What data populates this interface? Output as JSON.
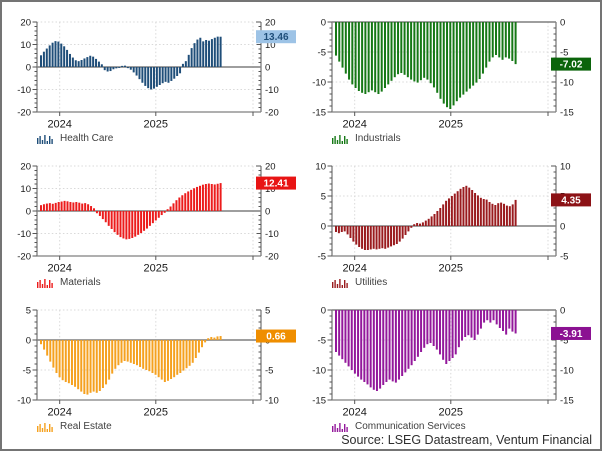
{
  "window": {
    "source_note": "Source: LSEG Datastream, Ventum Financial"
  },
  "chart_data": [
    {
      "type": "bar",
      "name": "Health Care",
      "value_label": "13.46",
      "color": "#1F4E79",
      "label_bg": "#9DC3E6",
      "label_fg": "#1F4E79",
      "ylim": [
        -20,
        20
      ],
      "yticks": [
        20,
        10,
        0,
        -10,
        -20
      ],
      "minor_step": 2,
      "x_year_labels": [
        "2024",
        "2025"
      ],
      "grid": true,
      "legend_position": "bottom-left",
      "values": [
        5.2,
        6.8,
        8.2,
        9.6,
        10.8,
        11.5,
        11.3,
        10.4,
        9.2,
        7.6,
        5.8,
        4.2,
        3.0,
        2.6,
        3.1,
        3.8,
        4.4,
        5.0,
        4.6,
        3.6,
        2.4,
        1.2,
        -1.4,
        -2.0,
        -1.8,
        -1.0,
        -0.6,
        -0.4,
        0.5,
        0.6,
        -0.5,
        -1.2,
        -2.4,
        -3.8,
        -5.4,
        -7.0,
        -8.4,
        -9.4,
        -10.0,
        -9.6,
        -8.8,
        -8.0,
        -7.2,
        -6.6,
        -7.0,
        -6.2,
        -5.2,
        -4.0,
        -2.8,
        1.4,
        2.6,
        5.4,
        8.4,
        10.6,
        12.2,
        13.0,
        11.4,
        12.0,
        11.7,
        12.4,
        13.0,
        13.5,
        13.46
      ]
    },
    {
      "type": "bar",
      "name": "Industrials",
      "value_label": "-7.02",
      "color": "#157815",
      "label_bg": "#0B640B",
      "label_fg": "#ffffff",
      "ylim": [
        -15,
        0
      ],
      "yticks": [
        0,
        -5,
        -10,
        -15
      ],
      "minor_step": 1,
      "x_year_labels": [
        "2024",
        "2025"
      ],
      "grid": true,
      "legend_position": "bottom-left",
      "values": [
        -5.6,
        -6.6,
        -7.6,
        -8.6,
        -9.6,
        -10.4,
        -11.0,
        -11.5,
        -11.8,
        -12.0,
        -11.7,
        -11.4,
        -11.7,
        -12.0,
        -11.6,
        -11.0,
        -10.4,
        -9.8,
        -9.2,
        -8.7,
        -8.5,
        -8.8,
        -9.2,
        -9.6,
        -9.9,
        -10.1,
        -9.7,
        -9.3,
        -9.6,
        -10.2,
        -10.9,
        -11.8,
        -12.8,
        -13.6,
        -14.2,
        -14.5,
        -13.9,
        -13.2,
        -12.6,
        -12.1,
        -11.6,
        -11.1,
        -10.6,
        -10.1,
        -9.5,
        -8.6,
        -7.6,
        -6.6,
        -5.9,
        -5.5,
        -5.9,
        -6.3,
        -5.9,
        -6.1,
        -6.5,
        -7.02
      ]
    },
    {
      "type": "bar",
      "name": "Materials",
      "value_label": "12.41",
      "color": "#EC1C1C",
      "label_bg": "#E81414",
      "label_fg": "#ffffff",
      "ylim": [
        -20,
        20
      ],
      "yticks": [
        20,
        10,
        0,
        -10,
        -20
      ],
      "minor_step": 2,
      "x_year_labels": [
        "2024",
        "2025"
      ],
      "grid": true,
      "legend_position": "bottom-left",
      "values": [
        2.6,
        3.0,
        3.3,
        3.5,
        3.2,
        3.6,
        4.0,
        4.2,
        4.5,
        4.3,
        4.0,
        3.8,
        4.0,
        3.7,
        3.3,
        3.5,
        3.0,
        2.2,
        1.2,
        -1.0,
        -2.2,
        -3.6,
        -5.0,
        -6.6,
        -8.0,
        -9.4,
        -10.6,
        -11.6,
        -12.2,
        -12.6,
        -12.4,
        -12.0,
        -11.4,
        -10.6,
        -9.8,
        -8.8,
        -7.8,
        -6.6,
        -5.4,
        -4.2,
        -3.0,
        -1.8,
        -0.8,
        0.8,
        2.0,
        3.4,
        4.8,
        6.0,
        7.0,
        7.9,
        8.7,
        9.4,
        10.1,
        10.7,
        11.2,
        11.7,
        12.0,
        12.2,
        12.0,
        11.8,
        12.1,
        12.41
      ]
    },
    {
      "type": "bar",
      "name": "Utilities",
      "value_label": "4.35",
      "color": "#9A1B1E",
      "label_bg": "#8C1216",
      "label_fg": "#ffffff",
      "ylim": [
        -5,
        10
      ],
      "yticks": [
        10,
        5,
        0,
        -5
      ],
      "minor_step": 1,
      "x_year_labels": [
        "2024",
        "2025"
      ],
      "grid": true,
      "legend_position": "bottom-left",
      "values": [
        -1.0,
        -1.2,
        -1.0,
        -0.9,
        -1.4,
        -2.0,
        -2.6,
        -3.1,
        -3.5,
        -3.8,
        -4.0,
        -4.0,
        -3.9,
        -3.8,
        -3.9,
        -3.8,
        -3.7,
        -3.8,
        -3.6,
        -3.4,
        -3.2,
        -3.0,
        -2.6,
        -2.1,
        -1.5,
        -0.9,
        -0.3,
        0.3,
        0.5,
        0.4,
        0.6,
        0.9,
        1.2,
        1.6,
        2.0,
        2.5,
        3.0,
        3.6,
        4.2,
        4.6,
        5.0,
        5.4,
        5.8,
        6.2,
        6.5,
        6.7,
        6.4,
        6.0,
        5.5,
        5.1,
        4.7,
        4.5,
        4.4,
        4.0,
        3.7,
        3.5,
        3.8,
        3.9,
        3.7,
        3.4,
        3.3,
        3.6,
        4.35
      ]
    },
    {
      "type": "bar",
      "name": "Real Estate",
      "value_label": "0.66",
      "color": "#F5A11F",
      "label_bg": "#EF8E00",
      "label_fg": "#ffffff",
      "ylim": [
        -10,
        5
      ],
      "yticks": [
        5,
        0,
        -5,
        -10
      ],
      "minor_step": 1,
      "x_year_labels": [
        "2024",
        "2025"
      ],
      "grid": true,
      "legend_position": "bottom-left",
      "values": [
        -0.7,
        -1.6,
        -2.6,
        -3.6,
        -4.6,
        -5.5,
        -6.2,
        -6.7,
        -7.0,
        -7.2,
        -7.5,
        -7.8,
        -8.2,
        -8.6,
        -9.0,
        -9.1,
        -8.8,
        -8.6,
        -8.8,
        -8.5,
        -8.0,
        -7.4,
        -6.6,
        -5.6,
        -4.8,
        -4.2,
        -3.8,
        -3.5,
        -3.6,
        -3.8,
        -4.0,
        -4.2,
        -4.5,
        -4.8,
        -5.0,
        -5.2,
        -5.5,
        -5.8,
        -6.2,
        -6.6,
        -7.0,
        -6.8,
        -6.5,
        -6.2,
        -5.8,
        -5.5,
        -5.1,
        -4.7,
        -4.3,
        -3.8,
        -3.0,
        -2.1,
        -1.2,
        -0.4,
        0.3,
        0.5,
        0.4,
        0.6,
        0.66
      ]
    },
    {
      "type": "bar",
      "name": "Communication Services",
      "value_label": "-3.91",
      "color": "#93189B",
      "label_bg": "#8B1192",
      "label_fg": "#ffffff",
      "ylim": [
        -15,
        0
      ],
      "yticks": [
        0,
        -5,
        -10,
        -15
      ],
      "minor_step": 1,
      "x_year_labels": [
        "2024",
        "2025"
      ],
      "grid": true,
      "legend_position": "bottom-left",
      "values": [
        -7.0,
        -7.6,
        -8.2,
        -8.8,
        -9.4,
        -10.0,
        -10.6,
        -11.1,
        -11.6,
        -12.0,
        -12.4,
        -12.9,
        -13.3,
        -13.5,
        -13.1,
        -12.5,
        -12.0,
        -11.6,
        -11.9,
        -12.1,
        -11.6,
        -11.0,
        -10.4,
        -9.8,
        -9.2,
        -8.5,
        -7.8,
        -7.0,
        -6.3,
        -5.7,
        -5.5,
        -6.0,
        -6.6,
        -7.4,
        -8.3,
        -9.0,
        -8.5,
        -8.0,
        -7.4,
        -6.2,
        -5.1,
        -4.5,
        -4.2,
        -4.6,
        -5.0,
        -4.1,
        -3.1,
        -2.1,
        -1.7,
        -2.1,
        -1.7,
        -2.4,
        -3.0,
        -3.5,
        -4.1,
        -3.1,
        -3.6,
        -3.91
      ]
    }
  ]
}
